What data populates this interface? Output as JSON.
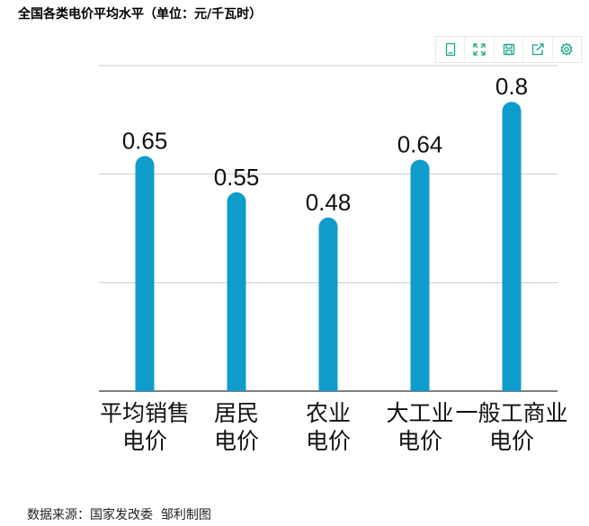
{
  "title": "全国各类电价平均水平（单位：元/千瓦时）",
  "footer": "数据来源：国家发改委  邹利制图",
  "toolbox": [
    {
      "name": "data-view-icon"
    },
    {
      "name": "restore-zoom-icon"
    },
    {
      "name": "save-image-icon"
    },
    {
      "name": "share-icon"
    },
    {
      "name": "settings-icon"
    }
  ],
  "colors": {
    "bar": "#0f9ccb",
    "tool": "#19a58a",
    "grid": "#cccccc",
    "axis": "#333333",
    "label": "#111111"
  },
  "chart_data": {
    "type": "bar",
    "title": "全国各类电价平均水平（单位：元/千瓦时）",
    "categories": [
      [
        "平均销售",
        "电价"
      ],
      [
        "居民",
        "电价"
      ],
      [
        "农业",
        "电价"
      ],
      [
        "大工业",
        "电价"
      ],
      [
        "一般工商业",
        "电价"
      ]
    ],
    "values": [
      0.65,
      0.55,
      0.48,
      0.64,
      0.8
    ],
    "value_labels": [
      "0.65",
      "0.55",
      "0.48",
      "0.64",
      "0.8"
    ],
    "ylim": [
      0,
      0.9
    ],
    "grid": true,
    "show_y_axis_labels": false,
    "xlabel": "",
    "ylabel": ""
  }
}
